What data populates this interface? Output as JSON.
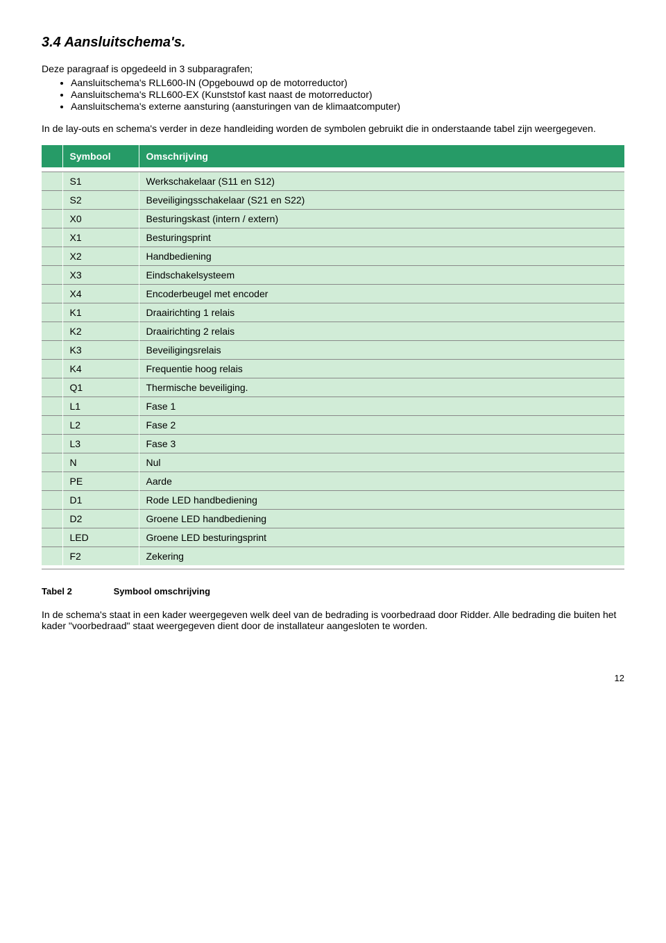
{
  "heading": "3.4  Aansluitschema's.",
  "intro": "Deze paragraaf is opgedeeld in 3 subparagrafen;",
  "bullets": [
    "Aansluitschema's RLL600-IN (Opgebouwd op de motorreductor)",
    "Aansluitschema's RLL600-EX (Kunststof kast naast de motorreductor)",
    "Aansluitschema's externe aansturing (aansturingen van de klimaatcomputer)"
  ],
  "body": "In de lay-outs en schema's verder in deze handleiding worden de symbolen gebruikt die in onderstaande tabel zijn weergegeven.",
  "table": {
    "header_bg": "#269b67",
    "row_bg": "#d1ecd7",
    "columns": [
      "Symbool",
      "Omschrijving"
    ],
    "rows": [
      [
        "S1",
        "Werkschakelaar (S11 en S12)"
      ],
      [
        "S2",
        "Beveiligingsschakelaar (S21 en S22)"
      ],
      [
        "X0",
        "Besturingskast (intern / extern)"
      ],
      [
        "X1",
        "Besturingsprint"
      ],
      [
        "X2",
        "Handbediening"
      ],
      [
        "X3",
        "Eindschakelsysteem"
      ],
      [
        "X4",
        "Encoderbeugel met encoder"
      ],
      [
        "K1",
        "Draairichting 1 relais"
      ],
      [
        "K2",
        "Draairichting 2 relais"
      ],
      [
        "K3",
        "Beveiligingsrelais"
      ],
      [
        "K4",
        "Frequentie hoog relais"
      ],
      [
        "Q1",
        "Thermische beveiliging."
      ],
      [
        "L1",
        "Fase 1"
      ],
      [
        "L2",
        "Fase 2"
      ],
      [
        "L3",
        "Fase 3"
      ],
      [
        "N",
        "Nul"
      ],
      [
        "PE",
        "Aarde"
      ],
      [
        "D1",
        "Rode LED handbediening"
      ],
      [
        "D2",
        "Groene LED handbediening"
      ],
      [
        "LED",
        "Groene LED besturingsprint"
      ],
      [
        "F2",
        "Zekering"
      ]
    ]
  },
  "caption_label": "Tabel 2",
  "caption_text": "Symbool omschrijving",
  "footer": "In de schema's staat in een kader weergegeven welk deel van de bedrading is voorbedraad door Ridder. Alle bedrading die buiten het kader \"voorbedraad\" staat weergegeven dient door de installateur aangesloten te worden.",
  "page_number": "12"
}
